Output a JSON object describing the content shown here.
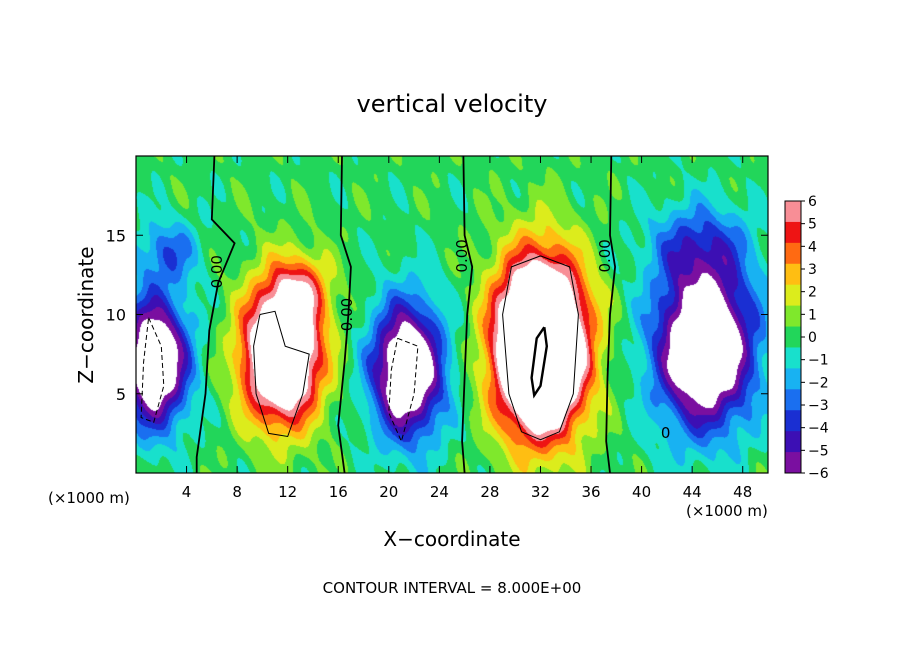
{
  "chart_data": {
    "type": "heatmap",
    "title": "vertical velocity",
    "xlabel": "X−coordinate",
    "ylabel": "Z−coordinate",
    "x_unit_left": "(×1000 m)",
    "x_unit_right": "(×1000 m)",
    "footer": "CONTOUR INTERVAL = 8.000E+00",
    "xlim": [
      0,
      50
    ],
    "ylim": [
      0,
      20
    ],
    "x_ticks": [
      4,
      8,
      12,
      16,
      20,
      24,
      28,
      32,
      36,
      40,
      44,
      48
    ],
    "x_tick_labels": [
      "4",
      "8",
      "12",
      "16",
      "20",
      "24",
      "28",
      "32",
      "36",
      "40",
      "44",
      "48"
    ],
    "y_ticks": [
      5,
      10,
      15
    ],
    "y_tick_labels": [
      "5",
      "10",
      "15"
    ],
    "colorbar": {
      "ticks": [
        6,
        5,
        4,
        3,
        2,
        1,
        0,
        -1,
        -2,
        -3,
        -4,
        -5,
        -6
      ],
      "labels": [
        "6",
        "5",
        "4",
        "3",
        "2",
        "1",
        "0",
        "−1",
        "−2",
        "−3",
        "−4",
        "−5",
        "−6"
      ],
      "range": [
        -6,
        6
      ]
    },
    "contour_labels": [
      {
        "text": "0.00",
        "x": 6.8,
        "z": 12.7
      },
      {
        "text": "0.00",
        "x": 17.1,
        "z": 10.0
      },
      {
        "text": "0.00",
        "x": 26.2,
        "z": 13.7
      },
      {
        "text": "0.00",
        "x": 37.5,
        "z": 13.7
      },
      {
        "text": "0",
        "x": 41.9,
        "z": 2.2
      }
    ],
    "features": [
      {
        "kind": "updraft",
        "x": 11.5,
        "z": 7.5,
        "sx": 3.0,
        "sz": 4.2,
        "amp": 13
      },
      {
        "kind": "updraft",
        "x": 13.0,
        "z": 11.5,
        "sx": 2.2,
        "sz": 2.2,
        "amp": 4
      },
      {
        "kind": "updraft",
        "x": 32.0,
        "z": 8.0,
        "sx": 3.4,
        "sz": 5.2,
        "amp": 19
      },
      {
        "kind": "downdraft",
        "x": 1.5,
        "z": 7.0,
        "sx": 2.6,
        "sz": 4.0,
        "amp": -10
      },
      {
        "kind": "downdraft",
        "x": 21.5,
        "z": 6.5,
        "sx": 2.8,
        "sz": 4.2,
        "amp": -10
      },
      {
        "kind": "downdraft",
        "x": 45.0,
        "z": 8.0,
        "sx": 3.8,
        "sz": 5.0,
        "amp": -11
      },
      {
        "kind": "downdraft",
        "x": 44.5,
        "z": 14.5,
        "sx": 4.0,
        "sz": 2.5,
        "amp": -3
      },
      {
        "kind": "downdraft",
        "x": 2.5,
        "z": 14.0,
        "sx": 2.5,
        "sz": 2.0,
        "amp": -3
      }
    ],
    "zero_contours": [
      [
        [
          6.2,
          20
        ],
        [
          6.0,
          16
        ],
        [
          7.8,
          14.5
        ],
        [
          6.5,
          12
        ],
        [
          5.8,
          9
        ],
        [
          5.5,
          5
        ],
        [
          4.8,
          1
        ],
        [
          4.8,
          0
        ]
      ],
      [
        [
          16.3,
          20
        ],
        [
          16.2,
          15
        ],
        [
          17.0,
          13
        ],
        [
          16.8,
          10
        ],
        [
          16.5,
          7
        ],
        [
          16.0,
          3
        ],
        [
          16.5,
          0
        ]
      ],
      [
        [
          25.9,
          20
        ],
        [
          26.0,
          15
        ],
        [
          26.6,
          13
        ],
        [
          26.2,
          10
        ],
        [
          26.0,
          6
        ],
        [
          25.8,
          2
        ],
        [
          26.0,
          0
        ]
      ],
      [
        [
          37.6,
          20
        ],
        [
          37.5,
          15
        ],
        [
          37.9,
          13
        ],
        [
          37.5,
          10
        ],
        [
          37.3,
          6
        ],
        [
          37.2,
          2
        ],
        [
          37.5,
          0
        ]
      ]
    ],
    "positive_contours": [
      [
        [
          32.0,
          13.7
        ],
        [
          34.3,
          13
        ],
        [
          35.0,
          10
        ],
        [
          34.6,
          5
        ],
        [
          33.5,
          2.6
        ],
        [
          32.0,
          2.1
        ],
        [
          30.5,
          2.6
        ],
        [
          29.5,
          5
        ],
        [
          29.0,
          10
        ],
        [
          29.7,
          13
        ],
        [
          32.0,
          13.7
        ]
      ],
      [
        [
          9.8,
          10.0
        ],
        [
          11.0,
          10.2
        ],
        [
          11.8,
          8
        ],
        [
          13.7,
          7.5
        ],
        [
          13.2,
          5
        ],
        [
          12.0,
          2.3
        ],
        [
          10.5,
          2.5
        ],
        [
          9.5,
          5
        ],
        [
          9.3,
          8
        ],
        [
          9.8,
          10.0
        ]
      ]
    ],
    "strong_contours": [
      [
        [
          32.3,
          9.2
        ],
        [
          32.5,
          8.0
        ],
        [
          32.0,
          5.5
        ],
        [
          31.5,
          4.9
        ],
        [
          31.3,
          6.0
        ],
        [
          31.7,
          8.5
        ],
        [
          32.3,
          9.2
        ]
      ]
    ],
    "negative_contours": [
      [
        [
          1.0,
          9.8
        ],
        [
          2.0,
          8.0
        ],
        [
          2.2,
          5.5
        ],
        [
          1.4,
          3.2
        ],
        [
          0.4,
          3.5
        ],
        [
          0.6,
          7.0
        ],
        [
          1.0,
          9.8
        ]
      ],
      [
        [
          20.7,
          8.5
        ],
        [
          22.3,
          8.0
        ],
        [
          22.0,
          5.0
        ],
        [
          21.0,
          2.0
        ],
        [
          20.0,
          3.8
        ],
        [
          20.2,
          6.5
        ],
        [
          20.7,
          8.5
        ]
      ]
    ]
  }
}
